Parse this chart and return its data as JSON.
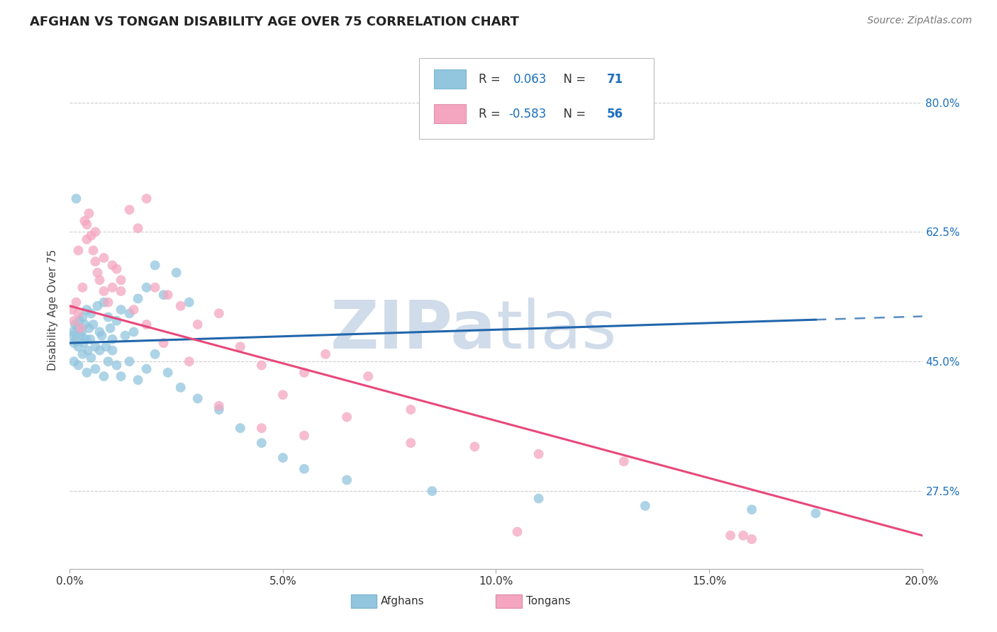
{
  "title": "AFGHAN VS TONGAN DISABILITY AGE OVER 75 CORRELATION CHART",
  "source": "Source: ZipAtlas.com",
  "ylabel": "Disability Age Over 75",
  "xlabel_ticks": [
    "0.0%",
    "5.0%",
    "10.0%",
    "15.0%",
    "20.0%"
  ],
  "xlabel_vals": [
    0.0,
    5.0,
    10.0,
    15.0,
    20.0
  ],
  "ylabel_ticks": [
    "80.0%",
    "62.5%",
    "45.0%",
    "27.5%"
  ],
  "ylabel_vals": [
    80.0,
    62.5,
    45.0,
    27.5
  ],
  "xmin": 0.0,
  "xmax": 20.0,
  "ymin": 17.0,
  "ymax": 87.0,
  "afghan_color": "#92c5de",
  "tongan_color": "#f4a6c0",
  "afghan_R": 0.063,
  "afghan_N": 71,
  "tongan_R": -0.583,
  "tongan_N": 56,
  "legend_color": "#1a6fbd",
  "regression_line_color_afghan": "#2166ac",
  "regression_line_color_tongan": "#e8487a",
  "watermark_color": "#ccd9e8",
  "background_color": "#ffffff",
  "title_fontsize": 13,
  "axis_label_fontsize": 11,
  "tick_fontsize": 11,
  "source_fontsize": 10,
  "afghan_x": [
    0.05,
    0.08,
    0.1,
    0.12,
    0.15,
    0.18,
    0.2,
    0.22,
    0.25,
    0.28,
    0.3,
    0.32,
    0.35,
    0.38,
    0.4,
    0.42,
    0.45,
    0.48,
    0.5,
    0.55,
    0.6,
    0.65,
    0.7,
    0.75,
    0.8,
    0.85,
    0.9,
    0.95,
    1.0,
    1.1,
    1.2,
    1.3,
    1.4,
    1.5,
    1.6,
    1.8,
    2.0,
    2.2,
    2.5,
    2.8,
    0.1,
    0.2,
    0.3,
    0.4,
    0.5,
    0.6,
    0.7,
    0.8,
    0.9,
    1.0,
    1.1,
    1.2,
    1.4,
    1.6,
    1.8,
    2.0,
    2.3,
    2.6,
    3.0,
    3.5,
    4.0,
    4.5,
    5.0,
    5.5,
    6.5,
    8.5,
    11.0,
    13.5,
    16.0,
    17.5,
    0.15
  ],
  "afghan_y": [
    48.5,
    49.0,
    47.5,
    50.0,
    48.0,
    49.5,
    47.0,
    50.5,
    48.5,
    49.0,
    51.0,
    47.5,
    50.0,
    48.0,
    52.0,
    46.5,
    49.5,
    48.0,
    51.5,
    50.0,
    47.0,
    52.5,
    49.0,
    48.5,
    53.0,
    47.0,
    51.0,
    49.5,
    48.0,
    50.5,
    52.0,
    48.5,
    51.5,
    49.0,
    53.5,
    55.0,
    58.0,
    54.0,
    57.0,
    53.0,
    45.0,
    44.5,
    46.0,
    43.5,
    45.5,
    44.0,
    46.5,
    43.0,
    45.0,
    46.5,
    44.5,
    43.0,
    45.0,
    42.5,
    44.0,
    46.0,
    43.5,
    41.5,
    40.0,
    38.5,
    36.0,
    34.0,
    32.0,
    30.5,
    29.0,
    27.5,
    26.5,
    25.5,
    25.0,
    24.5,
    67.0
  ],
  "tongan_x": [
    0.05,
    0.1,
    0.15,
    0.2,
    0.25,
    0.3,
    0.35,
    0.4,
    0.45,
    0.5,
    0.55,
    0.6,
    0.65,
    0.7,
    0.8,
    0.9,
    1.0,
    1.1,
    1.2,
    1.4,
    1.6,
    1.8,
    2.0,
    2.3,
    2.6,
    3.0,
    3.5,
    4.0,
    4.5,
    5.0,
    5.5,
    6.0,
    7.0,
    8.0,
    9.5,
    11.0,
    13.0,
    15.5,
    16.0,
    0.2,
    0.4,
    0.6,
    0.8,
    1.0,
    1.2,
    1.5,
    1.8,
    2.2,
    2.8,
    3.5,
    4.5,
    5.5,
    6.5,
    8.0,
    10.5,
    15.8
  ],
  "tongan_y": [
    52.0,
    50.5,
    53.0,
    51.5,
    49.5,
    55.0,
    64.0,
    63.5,
    65.0,
    62.0,
    60.0,
    58.5,
    57.0,
    56.0,
    54.5,
    53.0,
    55.0,
    57.5,
    56.0,
    65.5,
    63.0,
    67.0,
    55.0,
    54.0,
    52.5,
    50.0,
    51.5,
    47.0,
    44.5,
    40.5,
    43.5,
    46.0,
    43.0,
    34.0,
    33.5,
    32.5,
    31.5,
    21.5,
    21.0,
    60.0,
    61.5,
    62.5,
    59.0,
    58.0,
    54.5,
    52.0,
    50.0,
    47.5,
    45.0,
    39.0,
    36.0,
    35.0,
    37.5,
    38.5,
    22.0,
    21.5
  ]
}
